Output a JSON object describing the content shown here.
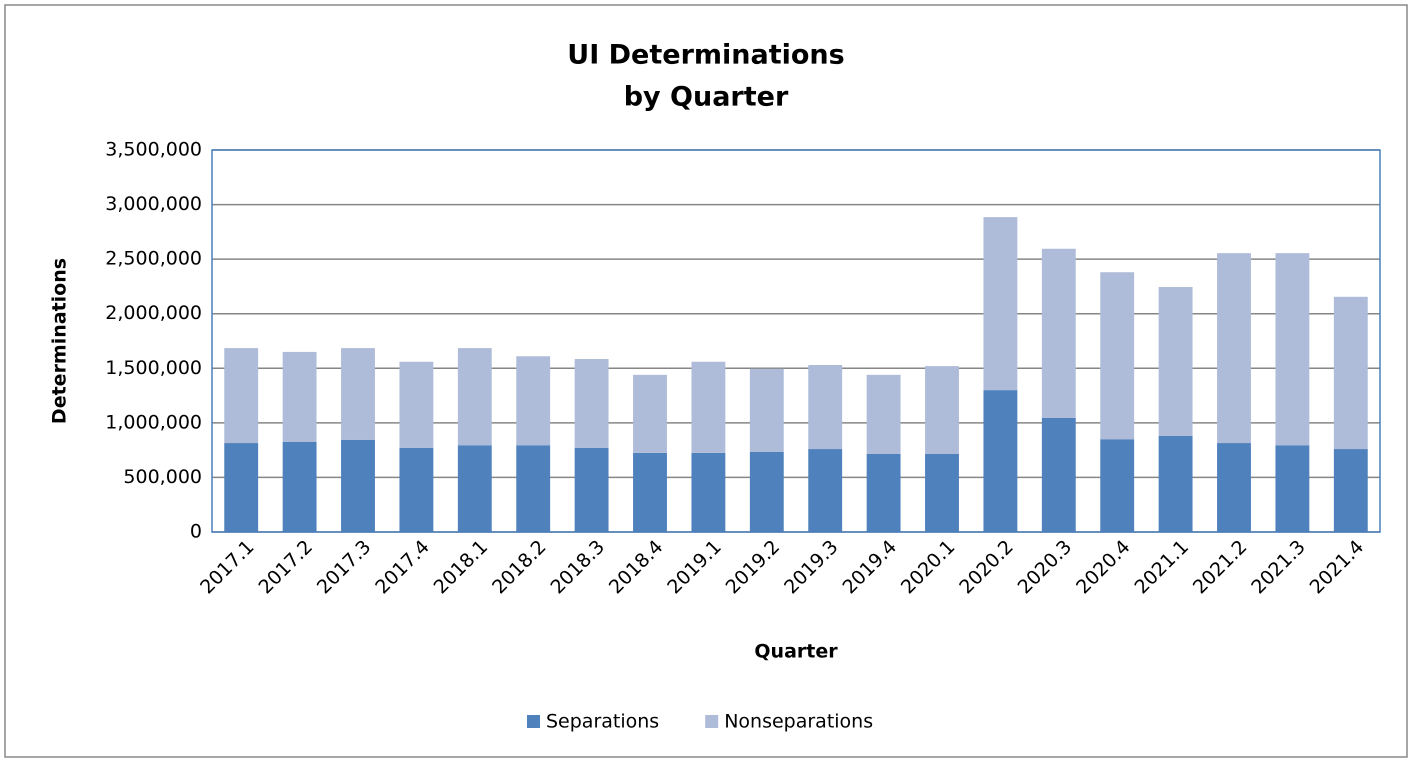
{
  "chart_data": {
    "type": "stacked_bar",
    "title": [
      "UI Determinations",
      "by Quarter"
    ],
    "x_label": "Quarter",
    "y_label": "Determinations",
    "categories": [
      "2017.1",
      "2017.2",
      "2017.3",
      "2017.4",
      "2018.1",
      "2018.2",
      "2018.3",
      "2018.4",
      "2019.1",
      "2019.2",
      "2019.3",
      "2019.4",
      "2020.1",
      "2020.2",
      "2020.3",
      "2020.4",
      "2021.1",
      "2021.2",
      "2021.3",
      "2021.4"
    ],
    "series": [
      {
        "name": "Separations",
        "color": "#4f81bd",
        "values": [
          815000,
          825000,
          845000,
          770000,
          795000,
          795000,
          770000,
          725000,
          725000,
          735000,
          760000,
          715000,
          715000,
          1300000,
          1045000,
          850000,
          880000,
          815000,
          795000,
          760000
        ]
      },
      {
        "name": "Nonseparations",
        "color": "#aebbd9",
        "values": [
          870000,
          825000,
          840000,
          790000,
          890000,
          815000,
          815000,
          715000,
          835000,
          760000,
          770000,
          725000,
          805000,
          1585000,
          1550000,
          1530000,
          1365000,
          1740000,
          1760000,
          1395000
        ]
      }
    ],
    "ylim": [
      0,
      3500000
    ],
    "yticks": [
      0,
      {
        "value": 500000,
        "label": "500,000"
      },
      {
        "value": 1000000,
        "label": "1,000,000"
      },
      {
        "value": 1500000,
        "label": "1,500,000"
      },
      {
        "value": 2000000,
        "label": "2,000,000"
      },
      {
        "value": 2500000,
        "label": "2,500,000"
      },
      {
        "value": 3000000,
        "label": "3,000,000"
      },
      {
        "value": 3500000,
        "label": "3,500,000"
      }
    ],
    "grid": true,
    "legend": "bottom"
  }
}
